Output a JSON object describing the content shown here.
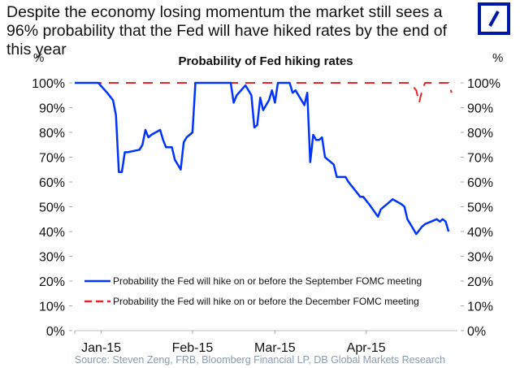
{
  "headline": "Despite the economy losing momentum the market still sees a 96% probability that the Fed will have hiked rates by the end of this year",
  "logo": "deutsche-bank-logo",
  "colors": {
    "september": "#0033ff",
    "december": "#e8232a",
    "logo": "#0018a8",
    "source_text": "#8a9bb0"
  },
  "source": "Source: Steven Zeng, FRB, Bloomberg Financial LP, DB Global Markets Research",
  "chart_data": {
    "type": "line",
    "title": "Probability of Fed hiking rates",
    "ylabel_left": "%",
    "ylabel_right": "%",
    "xlabel": "",
    "ylim": [
      0,
      100
    ],
    "yticks": [
      "0%",
      "10%",
      "20%",
      "30%",
      "40%",
      "50%",
      "60%",
      "70%",
      "80%",
      "90%",
      "100%"
    ],
    "xticks": [
      "Jan-15",
      "Feb-15",
      "Mar-15",
      "Apr-15"
    ],
    "xtick_days": [
      0,
      31,
      59,
      90
    ],
    "xlim_days": [
      -9,
      121
    ],
    "grid": false,
    "legend_position": "bottom-center",
    "series": [
      {
        "name": "Probability the Fed will hike on or before the September FOMC meeting",
        "style": "solid",
        "color": "#0033ff",
        "x_days": [
          -9,
          -1,
          2,
          4,
          5,
          6,
          7,
          8,
          9,
          13,
          14,
          15,
          16,
          17,
          20,
          21,
          22,
          24,
          25,
          26,
          27,
          28,
          29,
          31,
          32,
          33,
          37,
          44,
          45,
          46,
          49,
          50,
          51,
          52,
          53,
          54,
          55,
          56,
          57,
          58,
          59,
          60,
          61,
          62,
          64,
          65,
          66,
          67,
          68,
          69,
          70,
          71,
          72,
          73,
          74,
          75,
          76,
          78,
          79,
          80,
          82,
          83,
          84,
          88,
          89,
          91,
          94,
          95,
          99,
          102,
          103,
          104,
          106,
          107,
          109,
          110,
          112,
          114,
          115,
          116,
          117,
          118
        ],
        "values": [
          100,
          100,
          96,
          93,
          87,
          64,
          64,
          72,
          72,
          73,
          75,
          81,
          78,
          79,
          81,
          77,
          74,
          74,
          69,
          67,
          65,
          76,
          78,
          80,
          100,
          100,
          100,
          100,
          92,
          95,
          99,
          97,
          95,
          82,
          83,
          94,
          89,
          91,
          93,
          97,
          92,
          100,
          100,
          100,
          100,
          96,
          97,
          95,
          93,
          91,
          96,
          68,
          79,
          77,
          77,
          78,
          70,
          68,
          67,
          62,
          62,
          62,
          60,
          54,
          54,
          51,
          46,
          49,
          53,
          51,
          50,
          45,
          41,
          39,
          42,
          43,
          44,
          45,
          44,
          45,
          44,
          40
        ]
      },
      {
        "name": "Probability the Fed will hike on or before the December FOMC meeting",
        "style": "dashed",
        "color": "#e8232a",
        "x_days": [
          -9,
          105,
          107,
          108,
          109,
          110,
          118,
          119
        ],
        "values": [
          100,
          100,
          97,
          92,
          97,
          100,
          100,
          96
        ]
      }
    ]
  }
}
